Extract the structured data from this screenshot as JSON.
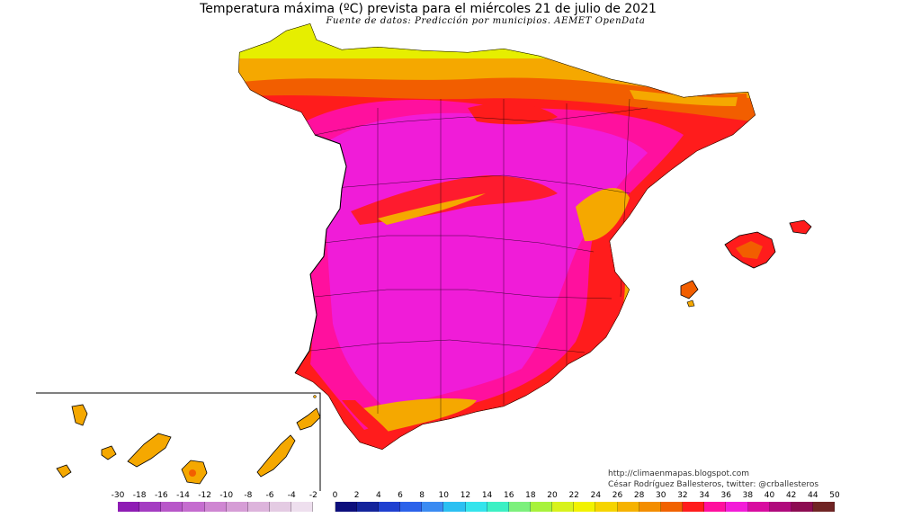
{
  "map": {
    "title": "Temperatura máxima (ºC) prevista para el miércoles 21 de julio de 2021",
    "subtitle": "Fuente de datos: Predicción por municipios. AEMET OpenData",
    "credit_site": "http://climaenmapas.blogspot.com",
    "credit_author": "César Rodríguez Ballesteros, twitter: @crballesteros"
  },
  "legend": {
    "labels": [
      "-30",
      "-18",
      "-16",
      "-14",
      "-12",
      "-10",
      "-8",
      "-6",
      "-4",
      "-2",
      "0",
      "2",
      "4",
      "6",
      "8",
      "10",
      "12",
      "14",
      "16",
      "18",
      "20",
      "22",
      "24",
      "26",
      "28",
      "30",
      "32",
      "34",
      "36",
      "38",
      "40",
      "42",
      "44",
      "50"
    ],
    "colors": [
      "#8e1cb4",
      "#a43cc2",
      "#b857c9",
      "#c56ccf",
      "#cf86d2",
      "#d69dd6",
      "#ddb4dc",
      "#e4cbe3",
      "#eedfee",
      "#ffffff",
      "#0d0f7c",
      "#14249c",
      "#1f40d0",
      "#2b62ea",
      "#3a8bf2",
      "#2bc0f2",
      "#34e4ec",
      "#3cf0c4",
      "#7cf07c",
      "#a8f23c",
      "#d8f21c",
      "#f2f200",
      "#f6d400",
      "#f6b200",
      "#f38d00",
      "#f16200",
      "#ff1c1c",
      "#ff109e",
      "#f31cd8",
      "#d80ca0",
      "#b00a7c",
      "#8c0c52",
      "#702424"
    ]
  }
}
